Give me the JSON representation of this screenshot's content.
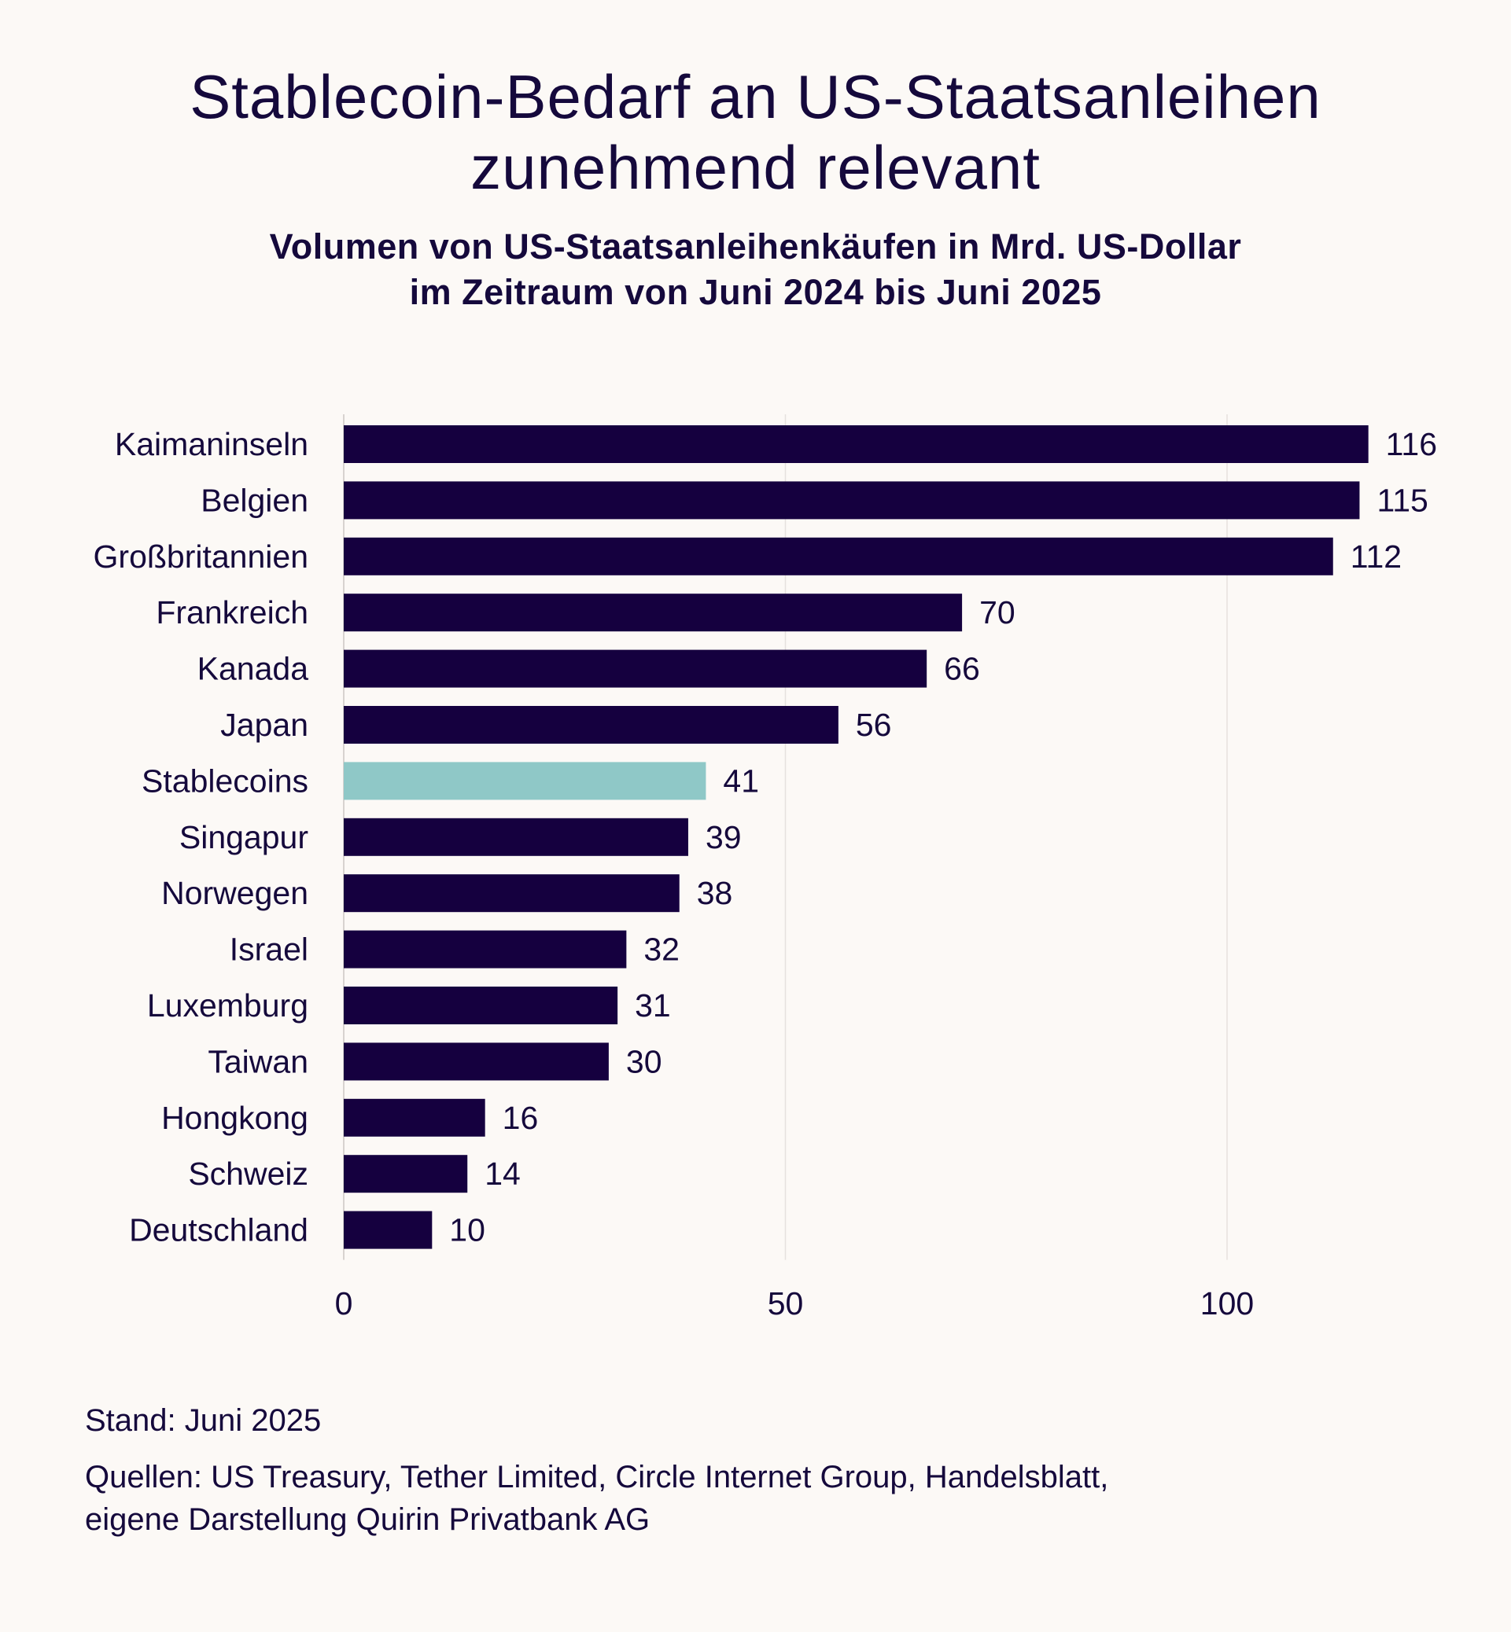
{
  "title_lines": [
    "Stablecoin-Bedarf an US-Staatsanleihen",
    "zunehmend relevant"
  ],
  "subtitle_lines": [
    "Volumen von US-Staatsanleihenkäufen in Mrd. US-Dollar",
    "im Zeitraum von Juni 2024 bis Juni 2025"
  ],
  "footer": {
    "stand": "Stand: Juni 2025",
    "sources_lines": [
      "Quellen: US Treasury, Tether Limited, Circle Internet Group, Handelsblatt,",
      "eigene Darstellung Quirin Privatbank AG"
    ]
  },
  "colors": {
    "bar": "#15003f",
    "highlight": "#8fc8c7",
    "text": "#15093c",
    "grid": "#e6e1de",
    "background": "#fcf9f6"
  },
  "chart_data": {
    "type": "bar",
    "orientation": "horizontal",
    "categories": [
      "Kaimaninseln",
      "Belgien",
      "Großbritannien",
      "Frankreich",
      "Kanada",
      "Japan",
      "Stablecoins",
      "Singapur",
      "Norwegen",
      "Israel",
      "Luxemburg",
      "Taiwan",
      "Hongkong",
      "Schweiz",
      "Deutschland"
    ],
    "values": [
      116,
      115,
      112,
      70,
      66,
      56,
      41,
      39,
      38,
      32,
      31,
      30,
      16,
      14,
      10
    ],
    "highlight_category": "Stablecoins",
    "xlim": [
      0,
      116
    ],
    "xticks": [
      0,
      50,
      100
    ],
    "grid": true,
    "xlabel": "",
    "ylabel": ""
  }
}
